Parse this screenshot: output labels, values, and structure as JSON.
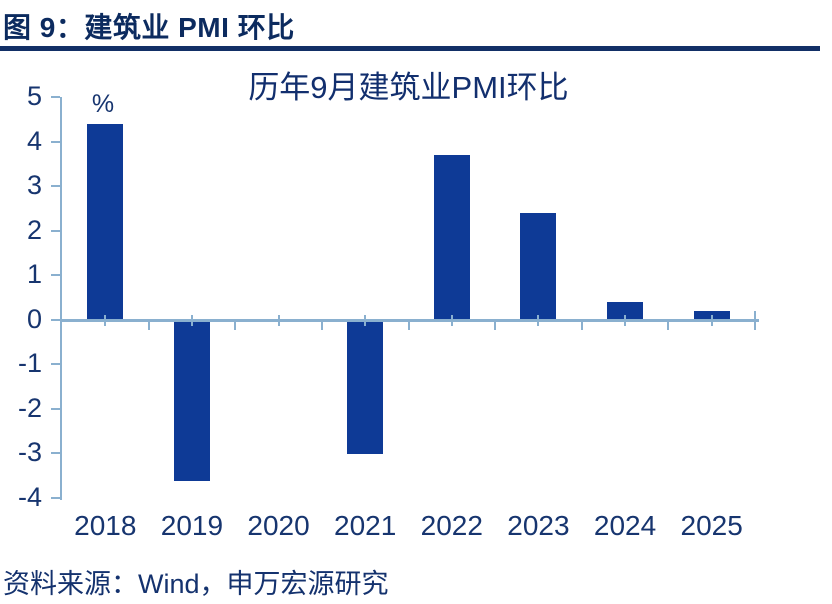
{
  "header": {
    "title": "图 9：建筑业 PMI 环比"
  },
  "chart_data": {
    "type": "bar",
    "title": "历年9月建筑业PMI环比",
    "unit_label": "%",
    "categories": [
      "2018",
      "2019",
      "2020",
      "2021",
      "2022",
      "2023",
      "2024",
      "2025"
    ],
    "values": [
      4.4,
      -3.6,
      0.0,
      -3.0,
      3.7,
      2.4,
      0.4,
      0.2
    ],
    "xlabel": "",
    "ylabel": "%",
    "ylim": [
      -4,
      5
    ],
    "ytick_step": 1,
    "grid": false,
    "legend": "none",
    "bar_color": "#0e3a96",
    "axis_color": "#8ab0cf",
    "label_color": "#17356f",
    "title_color": "#122f6e"
  },
  "source": {
    "text": "资料来源：Wind，申万宏源研究"
  }
}
